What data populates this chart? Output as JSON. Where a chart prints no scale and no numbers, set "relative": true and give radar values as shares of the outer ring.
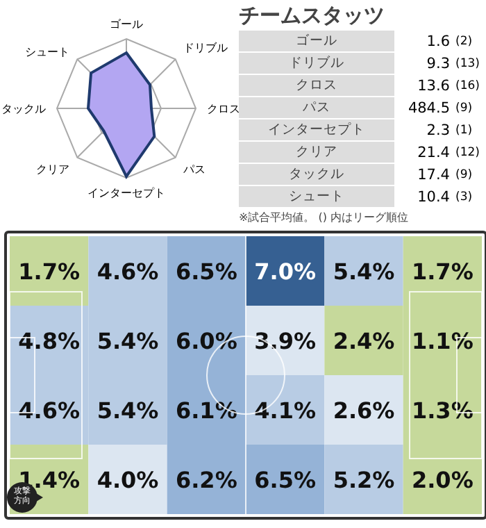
{
  "chart_data": [
    {
      "type": "radar",
      "relative": true,
      "grid": true,
      "categories": [
        "ゴール",
        "ドリブル",
        "クロス",
        "パス",
        "インターセプト",
        "クリア",
        "タックル",
        "シュート"
      ],
      "series": [
        {
          "color": "#b3a6f2",
          "values": [
            0.8,
            0.48,
            0.36,
            0.57,
            0.98,
            0.46,
            0.55,
            0.72
          ]
        }
      ]
    },
    {
      "type": "other",
      "title": "チームスタッツ",
      "categories": [
        "ゴール",
        "ドリブル",
        "クロス",
        "パス",
        "インターセプト",
        "クリア",
        "タックル",
        "シュート"
      ],
      "data_labels": true,
      "series": [
        {
          "values": [
            1.6,
            9.3,
            13.6,
            484.5,
            2.3,
            21.4,
            17.4,
            10.4
          ]
        },
        {
          "values": [
            2,
            13,
            16,
            9,
            1,
            12,
            9,
            3
          ],
          "value_labels": [
            "(2)",
            "(13)",
            "(16)",
            "(9)",
            "(1)",
            "(12)",
            "(9)",
            "(3)"
          ]
        }
      ],
      "annotations": [
        "※試合平均値。 () 内はリーグ順位"
      ]
    },
    {
      "type": "heatmap",
      "categories": [
        null,
        null,
        null,
        null,
        null,
        null
      ],
      "y_categories": [
        null,
        null,
        null,
        null
      ],
      "cells": [
        [
          1.7,
          4.6,
          6.5,
          7.0,
          5.4,
          1.7
        ],
        [
          4.8,
          5.4,
          6.0,
          3.9,
          2.4,
          1.1
        ],
        [
          4.6,
          5.4,
          6.1,
          4.1,
          2.6,
          1.3
        ],
        [
          1.4,
          4.0,
          6.2,
          6.5,
          5.2,
          2.0
        ]
      ],
      "cell_labels": [
        [
          "1.7%",
          "4.6%",
          "6.5%",
          "7.0%",
          "5.4%",
          "1.7%"
        ],
        [
          "4.8%",
          "5.4%",
          "6.0%",
          "3.9%",
          "2.4%",
          "1.1%"
        ],
        [
          "4.6%",
          "5.4%",
          "6.1%",
          "4.1%",
          "2.6%",
          "1.3%"
        ],
        [
          "1.4%",
          "4.0%",
          "6.2%",
          "6.5%",
          "5.2%",
          "2.0%"
        ]
      ],
      "annotations": [
        "攻撃方向"
      ]
    }
  ]
}
